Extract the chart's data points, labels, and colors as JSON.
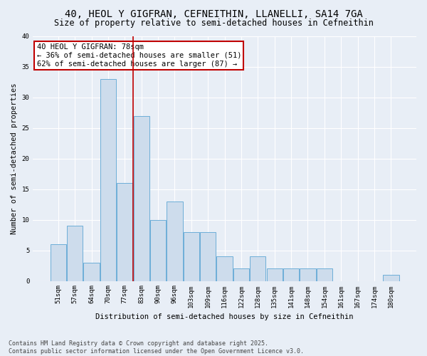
{
  "title_line1": "40, HEOL Y GIGFRAN, CEFNEITHIN, LLANELLI, SA14 7GA",
  "title_line2": "Size of property relative to semi-detached houses in Cefneithin",
  "categories": [
    "51sqm",
    "57sqm",
    "64sqm",
    "70sqm",
    "77sqm",
    "83sqm",
    "90sqm",
    "96sqm",
    "103sqm",
    "109sqm",
    "116sqm",
    "122sqm",
    "128sqm",
    "135sqm",
    "141sqm",
    "148sqm",
    "154sqm",
    "161sqm",
    "167sqm",
    "174sqm",
    "180sqm"
  ],
  "values": [
    6,
    9,
    3,
    33,
    16,
    27,
    10,
    13,
    8,
    8,
    4,
    2,
    4,
    2,
    2,
    2,
    2,
    0,
    0,
    0,
    1
  ],
  "bar_color": "#cddcec",
  "bar_edge_color": "#6daed8",
  "vline_color": "#c00000",
  "vline_pos": 4.5,
  "ylabel": "Number of semi-detached properties",
  "xlabel": "Distribution of semi-detached houses by size in Cefneithin",
  "annotation_title": "40 HEOL Y GIGFRAN: 78sqm",
  "annotation_line1": "← 36% of semi-detached houses are smaller (51)",
  "annotation_line2": "62% of semi-detached houses are larger (87) →",
  "annotation_box_color": "#ffffff",
  "annotation_box_edge_color": "#c00000",
  "footer_line1": "Contains HM Land Registry data © Crown copyright and database right 2025.",
  "footer_line2": "Contains public sector information licensed under the Open Government Licence v3.0.",
  "ylim": [
    0,
    40
  ],
  "yticks": [
    0,
    5,
    10,
    15,
    20,
    25,
    30,
    35,
    40
  ],
  "background_color": "#e8eef6",
  "grid_color": "#ffffff",
  "title_fontsize": 10,
  "subtitle_fontsize": 8.5,
  "axis_label_fontsize": 7.5,
  "tick_fontsize": 6.5,
  "annotation_fontsize": 7.5,
  "footer_fontsize": 6
}
